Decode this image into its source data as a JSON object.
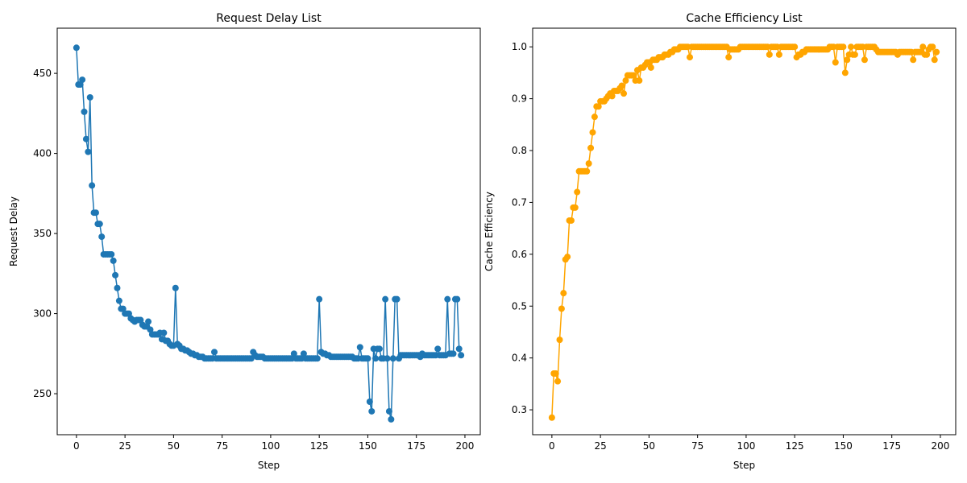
{
  "chart_data": [
    {
      "type": "line",
      "title": "Request Delay List",
      "x_label": "Step",
      "y_label": "Request Delay",
      "color": "#1f77b4",
      "x": [
        0,
        1,
        2,
        3,
        4,
        5,
        6,
        7,
        8,
        9,
        10,
        11,
        12,
        13,
        14,
        15,
        16,
        17,
        18,
        19,
        20,
        21,
        22,
        23,
        24,
        25,
        26,
        27,
        28,
        29,
        30,
        31,
        32,
        33,
        34,
        35,
        36,
        37,
        38,
        39,
        40,
        41,
        42,
        43,
        44,
        45,
        46,
        47,
        48,
        49,
        50,
        51,
        52,
        53,
        54,
        55,
        56,
        57,
        58,
        59,
        60,
        61,
        62,
        63,
        64,
        65,
        66,
        67,
        68,
        69,
        70,
        71,
        72,
        73,
        74,
        75,
        76,
        77,
        78,
        79,
        80,
        81,
        82,
        83,
        84,
        85,
        86,
        87,
        88,
        89,
        90,
        91,
        92,
        93,
        94,
        95,
        96,
        97,
        98,
        99,
        100,
        101,
        102,
        103,
        104,
        105,
        106,
        107,
        108,
        109,
        110,
        111,
        112,
        113,
        114,
        115,
        116,
        117,
        118,
        119,
        120,
        121,
        122,
        123,
        124,
        125,
        126,
        127,
        128,
        129,
        130,
        131,
        132,
        133,
        134,
        135,
        136,
        137,
        138,
        139,
        140,
        141,
        142,
        143,
        144,
        145,
        146,
        147,
        148,
        149,
        150,
        151,
        152,
        153,
        154,
        155,
        156,
        157,
        158,
        159,
        160,
        161,
        162,
        163,
        164,
        165,
        166,
        167,
        168,
        169,
        170,
        171,
        172,
        173,
        174,
        175,
        176,
        177,
        178,
        179,
        180,
        181,
        182,
        183,
        184,
        185,
        186,
        187,
        188,
        189,
        190,
        191,
        192,
        193,
        194,
        195,
        196,
        197,
        198
      ],
      "values": [
        466,
        443,
        443,
        446,
        426,
        409,
        401,
        435,
        380,
        363,
        363,
        356,
        356,
        348,
        337,
        337,
        337,
        337,
        337,
        333,
        324,
        316,
        308,
        303,
        303,
        300,
        300,
        300,
        297,
        296,
        295,
        296,
        296,
        296,
        293,
        292,
        292,
        295,
        290,
        287,
        287,
        287,
        287,
        288,
        284,
        288,
        283,
        283,
        281,
        280,
        280,
        316,
        281,
        280,
        278,
        278,
        277,
        277,
        276,
        275,
        275,
        274,
        274,
        273,
        273,
        273,
        272,
        272,
        272,
        272,
        272,
        276,
        272,
        272,
        272,
        272,
        272,
        272,
        272,
        272,
        272,
        272,
        272,
        272,
        272,
        272,
        272,
        272,
        272,
        272,
        272,
        276,
        274,
        273,
        273,
        273,
        273,
        272,
        272,
        272,
        272,
        272,
        272,
        272,
        272,
        272,
        272,
        272,
        272,
        272,
        272,
        272,
        275,
        272,
        272,
        272,
        272,
        275,
        272,
        272,
        272,
        272,
        272,
        272,
        272,
        309,
        276,
        275,
        275,
        274,
        274,
        273,
        273,
        273,
        273,
        273,
        273,
        273,
        273,
        273,
        273,
        273,
        273,
        272,
        272,
        272,
        279,
        272,
        272,
        272,
        272,
        245,
        239,
        278,
        272,
        278,
        278,
        272,
        272,
        309,
        272,
        239,
        234,
        272,
        309,
        309,
        272,
        274,
        274,
        274,
        274,
        274,
        274,
        274,
        274,
        274,
        274,
        273,
        275,
        274,
        274,
        274,
        274,
        274,
        274,
        274,
        278,
        274,
        274,
        274,
        274,
        309,
        275,
        275,
        275,
        309,
        309,
        278,
        274
      ],
      "xlim": [
        -9.9,
        207.9
      ],
      "ylim": [
        224.4,
        478.2
      ],
      "xticks": [
        0,
        25,
        50,
        75,
        100,
        125,
        150,
        175,
        200
      ],
      "yticks": [
        250,
        300,
        350,
        400,
        450
      ]
    },
    {
      "type": "line",
      "title": "Cache Efficiency List",
      "x_label": "Step",
      "y_label": "Cache Efficiency",
      "color": "#ffa500",
      "x": [
        0,
        1,
        2,
        3,
        4,
        5,
        6,
        7,
        8,
        9,
        10,
        11,
        12,
        13,
        14,
        15,
        16,
        17,
        18,
        19,
        20,
        21,
        22,
        23,
        24,
        25,
        26,
        27,
        28,
        29,
        30,
        31,
        32,
        33,
        34,
        35,
        36,
        37,
        38,
        39,
        40,
        41,
        42,
        43,
        44,
        45,
        46,
        47,
        48,
        49,
        50,
        51,
        52,
        53,
        54,
        55,
        56,
        57,
        58,
        59,
        60,
        61,
        62,
        63,
        64,
        65,
        66,
        67,
        68,
        69,
        70,
        71,
        72,
        73,
        74,
        75,
        76,
        77,
        78,
        79,
        80,
        81,
        82,
        83,
        84,
        85,
        86,
        87,
        88,
        89,
        90,
        91,
        92,
        93,
        94,
        95,
        96,
        97,
        98,
        99,
        100,
        101,
        102,
        103,
        104,
        105,
        106,
        107,
        108,
        109,
        110,
        111,
        112,
        113,
        114,
        115,
        116,
        117,
        118,
        119,
        120,
        121,
        122,
        123,
        124,
        125,
        126,
        127,
        128,
        129,
        130,
        131,
        132,
        133,
        134,
        135,
        136,
        137,
        138,
        139,
        140,
        141,
        142,
        143,
        144,
        145,
        146,
        147,
        148,
        149,
        150,
        151,
        152,
        153,
        154,
        155,
        156,
        157,
        158,
        159,
        160,
        161,
        162,
        163,
        164,
        165,
        166,
        167,
        168,
        169,
        170,
        171,
        172,
        173,
        174,
        175,
        176,
        177,
        178,
        179,
        180,
        181,
        182,
        183,
        184,
        185,
        186,
        187,
        188,
        189,
        190,
        191,
        192,
        193,
        194,
        195,
        196,
        197,
        198
      ],
      "values": [
        0.285,
        0.37,
        0.37,
        0.355,
        0.435,
        0.495,
        0.525,
        0.59,
        0.595,
        0.665,
        0.665,
        0.69,
        0.69,
        0.72,
        0.76,
        0.76,
        0.76,
        0.76,
        0.76,
        0.775,
        0.805,
        0.835,
        0.865,
        0.885,
        0.885,
        0.895,
        0.895,
        0.895,
        0.9,
        0.905,
        0.91,
        0.905,
        0.915,
        0.915,
        0.915,
        0.92,
        0.925,
        0.91,
        0.935,
        0.945,
        0.945,
        0.945,
        0.945,
        0.935,
        0.955,
        0.935,
        0.96,
        0.96,
        0.965,
        0.97,
        0.97,
        0.96,
        0.975,
        0.975,
        0.975,
        0.98,
        0.98,
        0.98,
        0.985,
        0.985,
        0.985,
        0.99,
        0.99,
        0.995,
        0.995,
        0.995,
        1,
        1,
        1,
        1,
        1,
        0.98,
        1,
        1,
        1,
        1,
        1,
        1,
        1,
        1,
        1,
        1,
        1,
        1,
        1,
        1,
        1,
        1,
        1,
        1,
        1,
        0.98,
        0.995,
        0.995,
        0.995,
        0.995,
        0.995,
        1,
        1,
        1,
        1,
        1,
        1,
        1,
        1,
        1,
        1,
        1,
        1,
        1,
        1,
        1,
        0.985,
        1,
        1,
        1,
        1,
        0.985,
        1,
        1,
        1,
        1,
        1,
        1,
        1,
        1,
        0.98,
        0.985,
        0.985,
        0.99,
        0.99,
        0.995,
        0.995,
        0.995,
        0.995,
        0.995,
        0.995,
        0.995,
        0.995,
        0.995,
        0.995,
        0.995,
        0.995,
        1,
        1,
        1,
        0.97,
        1,
        1,
        1,
        1,
        0.95,
        0.975,
        0.985,
        1,
        0.985,
        0.985,
        1,
        1,
        1,
        1,
        0.975,
        1,
        1,
        1,
        1,
        1,
        0.995,
        0.99,
        0.99,
        0.99,
        0.99,
        0.99,
        0.99,
        0.99,
        0.99,
        0.99,
        0.99,
        0.985,
        0.99,
        0.99,
        0.99,
        0.99,
        0.99,
        0.99,
        0.99,
        0.975,
        0.99,
        0.99,
        0.99,
        0.99,
        1,
        0.985,
        0.985,
        0.995,
        1,
        1,
        0.975,
        0.99
      ],
      "xlim": [
        -9.9,
        207.9
      ],
      "ylim": [
        0.252,
        1.036
      ],
      "xticks": [
        0,
        25,
        50,
        75,
        100,
        125,
        150,
        175,
        200
      ],
      "yticks": [
        0.3,
        0.4,
        0.5,
        0.6,
        0.7,
        0.8,
        0.9,
        {
          "value": 1,
          "label": "1.0"
        }
      ]
    }
  ]
}
